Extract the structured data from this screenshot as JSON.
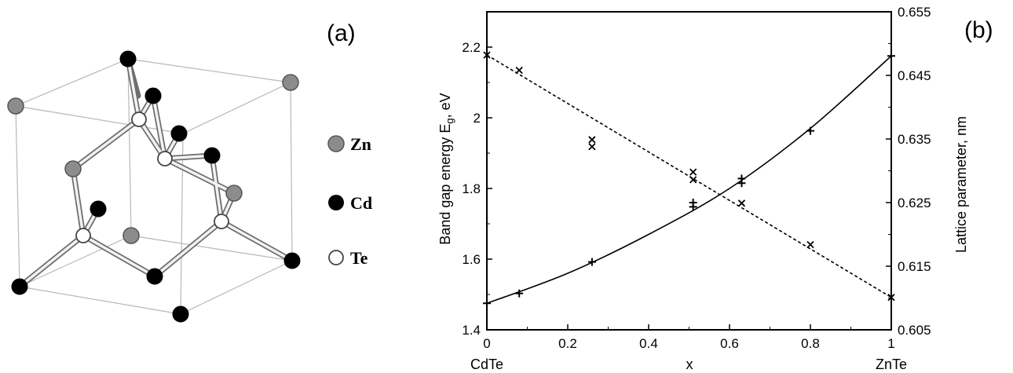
{
  "panels": {
    "a_label": "(a)",
    "b_label": "(b)"
  },
  "structure": {
    "legend": [
      {
        "symbol": "Zn",
        "color": "#8a8a8a"
      },
      {
        "symbol": "Cd",
        "color": "#000000"
      },
      {
        "symbol": "Te",
        "color": "#ffffff"
      }
    ]
  },
  "chart_data": {
    "type": "scatter",
    "xlabel": "x",
    "ylabel_left": "Band gap energy E",
    "ylabel_left_sub": "g",
    "ylabel_left_unit": ", eV",
    "ylabel_right": "Lattice parameter, nm",
    "x_end_labels": [
      "CdTe",
      "ZnTe"
    ],
    "xlim": [
      0,
      1
    ],
    "ylim_left": [
      1.4,
      2.3
    ],
    "ylim_right": [
      0.605,
      0.655
    ],
    "x_ticks": [
      "0",
      "0.2",
      "0.4",
      "0.6",
      "0.8",
      "1"
    ],
    "y_left_ticks": [
      "1.4",
      "1.6",
      "1.8",
      "2",
      "2.2"
    ],
    "y_right_ticks": [
      "0.605",
      "0.615",
      "0.625",
      "0.635",
      "0.645",
      "0.655"
    ],
    "series": [
      {
        "axis": "left",
        "marker": "+",
        "line": "solid",
        "points": [
          [
            0.0,
            1.475
          ],
          [
            0.08,
            1.503
          ],
          [
            0.26,
            1.592
          ],
          [
            0.51,
            1.748
          ],
          [
            0.51,
            1.76
          ],
          [
            0.63,
            1.815
          ],
          [
            0.63,
            1.828
          ],
          [
            0.8,
            1.963
          ],
          [
            1.0,
            2.175
          ]
        ],
        "fit": [
          [
            0.0,
            1.475
          ],
          [
            0.2,
            1.56
          ],
          [
            0.4,
            1.67
          ],
          [
            0.6,
            1.8
          ],
          [
            0.8,
            1.97
          ],
          [
            1.0,
            2.175
          ]
        ]
      },
      {
        "axis": "right",
        "marker": "x",
        "line": "dashed",
        "points": [
          [
            0.0,
            0.6482
          ],
          [
            0.08,
            0.6458
          ],
          [
            0.26,
            0.6349
          ],
          [
            0.26,
            0.6338
          ],
          [
            0.51,
            0.6298
          ],
          [
            0.51,
            0.6286
          ],
          [
            0.63,
            0.6249
          ],
          [
            0.8,
            0.6184
          ],
          [
            1.0,
            0.6101
          ]
        ],
        "fit": [
          [
            0.0,
            0.6482
          ],
          [
            1.0,
            0.6101
          ]
        ]
      }
    ]
  }
}
